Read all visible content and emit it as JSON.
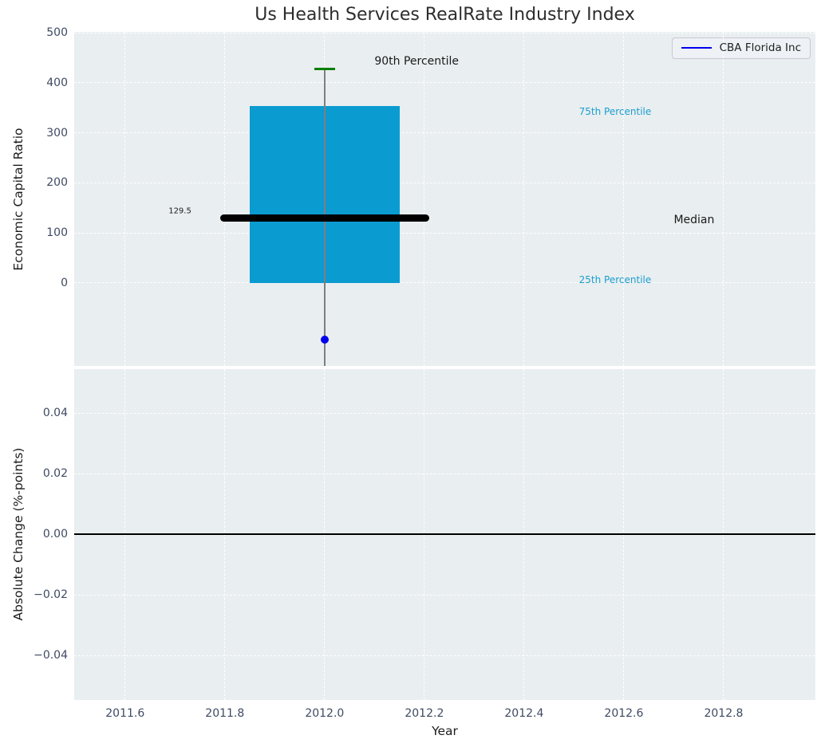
{
  "legend": {
    "label": "CBA Florida Inc",
    "line_color": "#0000ee"
  },
  "colors": {
    "axes_background": "#e9eef0",
    "grid": "#ffffff",
    "box_fill": "#0a9bd0",
    "median_line": "#000000",
    "whisker": "#7f7f7f",
    "cap_90th": "#008000",
    "point": "#0000ee",
    "tick_text": "#3e4a63",
    "percentile_text": "#1b9ecf",
    "annotation_text": "#1a1a1a",
    "zero_line": "#000000"
  },
  "chart_data": [
    {
      "type": "box",
      "title": "Us Health Services RealRate Industry Index",
      "ylabel": "Economic Capital Ratio",
      "xlim": [
        2011.498,
        2012.984
      ],
      "ylim": [
        -166,
        502
      ],
      "grid": true,
      "legend_position": "upper right",
      "xticks": [
        2011.6,
        2011.8,
        2012.0,
        2012.2,
        2012.4,
        2012.6,
        2012.8
      ],
      "yticks": [
        {
          "v": 500,
          "label": "500"
        },
        {
          "v": 400,
          "label": "400"
        },
        {
          "v": 300,
          "label": "300"
        },
        {
          "v": 200,
          "label": "200"
        },
        {
          "v": 100,
          "label": "100"
        },
        {
          "v": 0,
          "label": "0"
        }
      ],
      "box": {
        "x_center": 2012.0,
        "box_left": 2011.85,
        "box_right": 2012.15,
        "q25": 0,
        "median": 129.5,
        "median_label": "129.5",
        "q75": 353,
        "p90": 428,
        "median_line_left": 2011.79,
        "median_line_right": 2012.21,
        "cap_half_width": 0.021,
        "whisker_bottom": -166
      },
      "series": [
        {
          "name": "CBA Florida Inc",
          "type": "scatter",
          "color": "#0000ee",
          "points": [
            {
              "x": 2012.0,
              "y": -113
            }
          ]
        }
      ],
      "annotations": [
        {
          "text": "90th Percentile",
          "x": 2012.1,
          "y": 443,
          "color": "#1a1a1a",
          "size": 14,
          "align": "left"
        },
        {
          "text": "75th Percentile",
          "x": 2012.51,
          "y": 342,
          "color": "#1b9ecf",
          "size": 12,
          "align": "left"
        },
        {
          "text": "25th Percentile",
          "x": 2012.51,
          "y": 6,
          "color": "#1b9ecf",
          "size": 12,
          "align": "left"
        },
        {
          "text": "Median",
          "x": 2012.7,
          "y": 126,
          "color": "#1a1a1a",
          "size": 14,
          "align": "left"
        },
        {
          "text": "129.5",
          "x": 2011.71,
          "y": 143,
          "color": "#1a1a1a",
          "size": 10,
          "align": "center"
        }
      ]
    },
    {
      "type": "line",
      "ylabel": "Absolute Change (%-points)",
      "xlabel": "Year",
      "xlim": [
        2011.498,
        2012.984
      ],
      "ylim": [
        -0.0547,
        0.0545
      ],
      "grid": true,
      "xticks": [
        2011.6,
        2011.8,
        2012.0,
        2012.2,
        2012.4,
        2012.6,
        2012.8
      ],
      "xtick_labels": [
        "2011.6",
        "2011.8",
        "2012.0",
        "2012.2",
        "2012.4",
        "2012.6",
        "2012.8"
      ],
      "yticks": [
        {
          "v": 0.04,
          "label": "0.04"
        },
        {
          "v": 0.02,
          "label": "0.02"
        },
        {
          "v": 0.0,
          "label": "0.00"
        },
        {
          "v": -0.02,
          "label": "−0.02"
        },
        {
          "v": -0.04,
          "label": "−0.04"
        }
      ],
      "zero_line": {
        "y": 0.0,
        "color": "#000000"
      },
      "series": []
    }
  ]
}
